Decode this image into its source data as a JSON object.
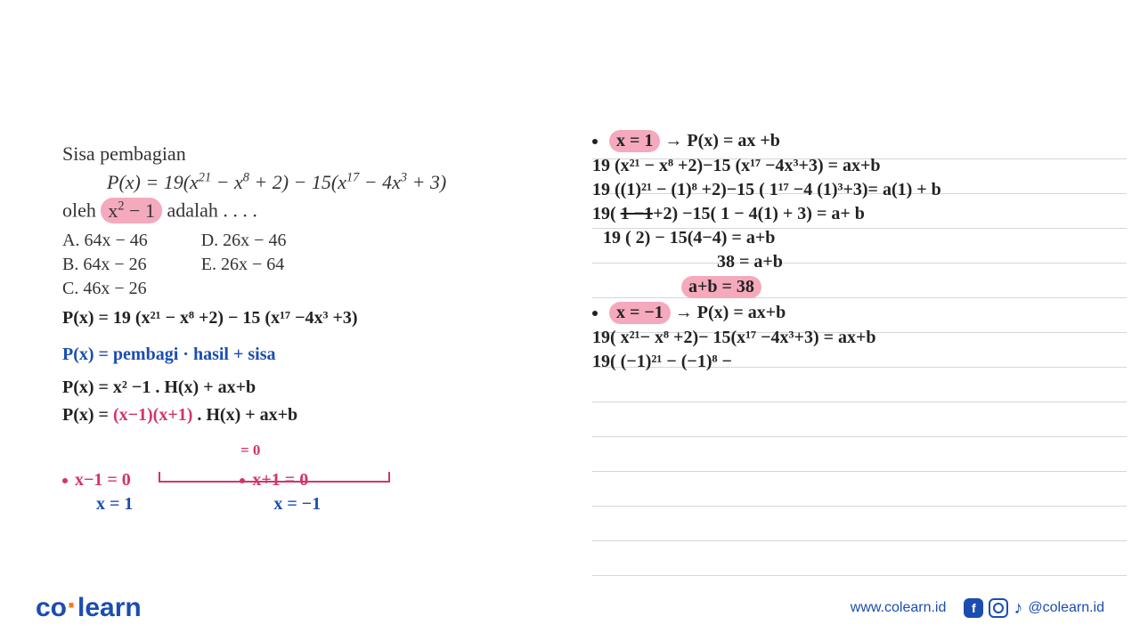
{
  "colors": {
    "highlight": "#f5a9bc",
    "blue_ink": "#1b4db1",
    "pink_ink": "#d1356b",
    "black_ink": "#222222",
    "printed_text": "#333333",
    "rule_line": "#d4d6dc",
    "brand_blue": "#1b4db1",
    "brand_orange": "#ef7d1a"
  },
  "fonts": {
    "printed_pt": 22,
    "options_pt": 20,
    "handwriting_pt": 20,
    "logo_pt": 30,
    "footer_pt": 16
  },
  "question": {
    "title": "Sisa pembagian",
    "equation_html": "P(x) = 19(x<sup>21</sup> − x<sup>8</sup> + 2) − 15(x<sup>17</sup> − 4x<sup>3</sup> + 3)",
    "sub_prefix": "oleh ",
    "highlight_html": "x<sup>2</sup> − 1",
    "sub_suffix": " adalah . . . .",
    "options_col1": {
      "a": "A.   64x − 46",
      "b": "B.   64x − 26",
      "c": "C.   46x − 26"
    },
    "options_col2": {
      "d": "D.   26x − 46",
      "e": "E.   26x − 64"
    }
  },
  "left_work": {
    "l1": "P(x) = 19 (x²¹ − x⁸ +2) − 15 (x¹⁷ −4x³ +3)",
    "l2": "P(x) = pembagi · hasil + sisa",
    "l3": "P(x) = x² −1 .   H(x)  +   ax+b",
    "l4_a": "P(x) = ",
    "l4_b": "(x−1)(x+1)",
    "l4_c": " . H(x) + ax+b",
    "l5": "= 0",
    "b1_label": "x−1 = 0",
    "b1_val": "x = 1",
    "b2_label": "x+1  = 0",
    "b2_val": "x = −1"
  },
  "right_work": {
    "r1_hl": "x = 1",
    "r1_rest": "  →   P(x)  =  ax +b",
    "r2": "19 (x²¹ − x⁸ +2)−15 (x¹⁷ −4x³+3)  = ax+b",
    "r3": "19 ((1)²¹ − (1)⁸ +2)−15 ( 1¹⁷ −4 (1)³+3)= a(1) + b",
    "r4_a": "19( ",
    "r4_b": "1 −1",
    "r4_c": "+2) −15( 1 − 4(1) + 3) = a+ b",
    "r5": "19 ( 2)  −  15(4−4)  =  a+b",
    "r6": "38       =   a+b",
    "r7": "a+b  =   38",
    "r8_hl": "x = −1",
    "r8_rest": "  →    P(x)  =   ax+b",
    "r9": "19( x²¹− x⁸  +2)− 15(x¹⁷ −4x³+3)  = ax+b",
    "r10": "19( (−1)²¹ − (−1)⁸ −"
  },
  "footer": {
    "logo_co": "co",
    "logo_learn": "learn",
    "url": "www.colearn.id",
    "handle": "@colearn.id"
  }
}
